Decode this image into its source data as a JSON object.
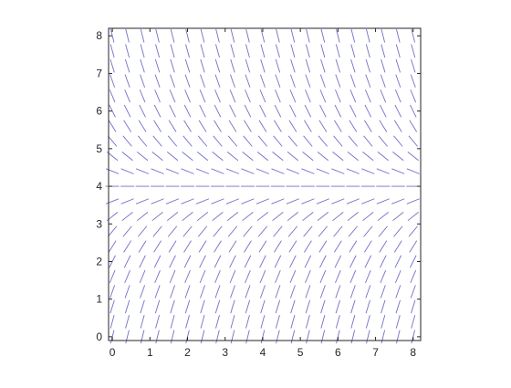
{
  "chart_data": {
    "type": "slope-field",
    "title": "",
    "xlabel": "",
    "ylabel": "",
    "xlim": [
      -0.1,
      8.2
    ],
    "ylim": [
      -0.1,
      8.2
    ],
    "x_ticks": [
      0,
      1,
      2,
      3,
      4,
      5,
      6,
      7,
      8
    ],
    "y_ticks": [
      0,
      1,
      2,
      3,
      4,
      5,
      6,
      7,
      8
    ],
    "x_tick_labels": [
      "0",
      "1",
      "2",
      "3",
      "4",
      "5",
      "6",
      "7",
      "8"
    ],
    "y_tick_labels": [
      "0",
      "1",
      "2",
      "3",
      "4",
      "5",
      "6",
      "7",
      "8"
    ],
    "grid": false,
    "equilibrium_y": 4,
    "field_grid": {
      "x_start": 0,
      "x_end": 8.1,
      "x_step": 0.4,
      "y_start": 0,
      "y_end": 8.1,
      "y_step": 0.4
    },
    "colors": {
      "segment": "#7070c8",
      "axes": "#262626",
      "background": "#ffffff"
    }
  }
}
